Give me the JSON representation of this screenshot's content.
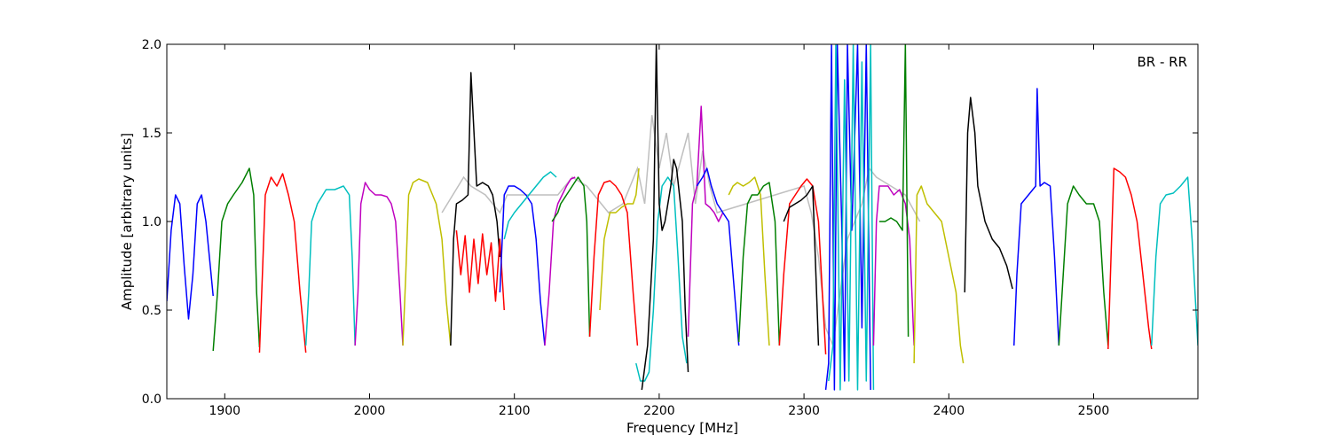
{
  "chart_data": {
    "type": "line",
    "title": "",
    "xlabel": "Frequency [MHz]",
    "ylabel": "Amplitude [arbitrary units]",
    "xlim": [
      1860,
      2572
    ],
    "ylim": [
      0.0,
      2.0
    ],
    "x_ticks": [
      1900,
      2000,
      2100,
      2200,
      2300,
      2400,
      2500
    ],
    "y_ticks": [
      0.0,
      0.5,
      1.0,
      1.5,
      2.0
    ],
    "x_tick_labels": [
      "1900",
      "2000",
      "2100",
      "2200",
      "2300",
      "2400",
      "2500"
    ],
    "y_tick_labels": [
      "0.0",
      "0.5",
      "1.0",
      "1.5",
      "2.0"
    ],
    "annotation": "BR - RR",
    "annotation_position": "top-right",
    "grid": false,
    "background_series": {
      "color": "#bfbfbf",
      "description": "unflagged data (gray) underlying each band",
      "points": [
        [
          2050,
          1.05
        ],
        [
          2065,
          1.25
        ],
        [
          2070,
          1.2
        ],
        [
          2080,
          1.15
        ],
        [
          2090,
          1.05
        ],
        [
          2095,
          1.15
        ],
        [
          2130,
          1.15
        ],
        [
          2140,
          1.25
        ],
        [
          2150,
          1.2
        ],
        [
          2165,
          1.05
        ],
        [
          2175,
          1.1
        ],
        [
          2185,
          1.3
        ],
        [
          2190,
          1.1
        ],
        [
          2195,
          1.6
        ],
        [
          2200,
          1.3
        ],
        [
          2205,
          1.5
        ],
        [
          2210,
          1.2
        ],
        [
          2220,
          1.5
        ],
        [
          2225,
          1.1
        ],
        [
          2230,
          1.4
        ],
        [
          2235,
          1.2
        ],
        [
          2240,
          1.05
        ],
        [
          2300,
          1.2
        ],
        [
          2305,
          1.05
        ],
        [
          2310,
          0.8
        ],
        [
          2315,
          0.4
        ],
        [
          2320,
          0.3
        ],
        [
          2330,
          0.9
        ],
        [
          2340,
          1.1
        ],
        [
          2345,
          1.3
        ],
        [
          2350,
          1.25
        ],
        [
          2360,
          1.2
        ],
        [
          2370,
          1.15
        ],
        [
          2380,
          1.0
        ]
      ]
    },
    "series": [
      {
        "color": "#0000ff",
        "x": [
          1860,
          1863,
          1866,
          1869,
          1872,
          1875,
          1878,
          1881,
          1884,
          1887,
          1890,
          1892
        ],
        "y": [
          0.55,
          0.95,
          1.15,
          1.1,
          0.75,
          0.45,
          0.7,
          1.1,
          1.15,
          1.0,
          0.75,
          0.58
        ]
      },
      {
        "color": "#007f00",
        "x": [
          1892,
          1895,
          1898,
          1902,
          1906,
          1912,
          1917,
          1920,
          1922,
          1924
        ],
        "y": [
          0.27,
          0.6,
          1.0,
          1.1,
          1.15,
          1.22,
          1.3,
          1.15,
          0.6,
          0.29
        ]
      },
      {
        "color": "#ff0000",
        "x": [
          1924,
          1926,
          1928,
          1932,
          1936,
          1940,
          1944,
          1948,
          1952,
          1956
        ],
        "y": [
          0.26,
          0.7,
          1.15,
          1.25,
          1.2,
          1.27,
          1.15,
          1.0,
          0.6,
          0.26
        ]
      },
      {
        "color": "#00bfbf",
        "x": [
          1956,
          1958,
          1960,
          1964,
          1970,
          1976,
          1982,
          1986,
          1988,
          1990
        ],
        "y": [
          0.3,
          0.6,
          1.0,
          1.1,
          1.18,
          1.18,
          1.2,
          1.15,
          0.8,
          0.3
        ]
      },
      {
        "color": "#bf00bf",
        "x": [
          1990,
          1992,
          1994,
          1997,
          2000,
          2004,
          2008,
          2012,
          2015,
          2018,
          2021,
          2023
        ],
        "y": [
          0.3,
          0.6,
          1.1,
          1.22,
          1.18,
          1.15,
          1.15,
          1.14,
          1.1,
          1.0,
          0.6,
          0.3
        ]
      },
      {
        "color": "#bfbf00",
        "x": [
          2023,
          2025,
          2027,
          2030,
          2034,
          2040,
          2046,
          2050,
          2053,
          2056
        ],
        "y": [
          0.3,
          0.7,
          1.15,
          1.22,
          1.24,
          1.22,
          1.1,
          0.9,
          0.55,
          0.3
        ]
      },
      {
        "color": "#000000",
        "x": [
          2056,
          2058,
          2060,
          2064,
          2068,
          2070,
          2074,
          2078,
          2082,
          2085,
          2088,
          2090
        ],
        "y": [
          0.3,
          0.9,
          1.1,
          1.12,
          1.15,
          1.84,
          1.2,
          1.22,
          1.2,
          1.15,
          1.0,
          0.8
        ]
      },
      {
        "color": "#ff0000",
        "x": [
          2060,
          2063,
          2066,
          2069,
          2072,
          2075,
          2078,
          2081,
          2084,
          2087,
          2090,
          2093
        ],
        "y": [
          0.95,
          0.7,
          0.92,
          0.6,
          0.9,
          0.65,
          0.93,
          0.7,
          0.88,
          0.55,
          0.9,
          0.5
        ]
      },
      {
        "color": "#0000ff",
        "x": [
          2090,
          2093,
          2096,
          2100,
          2104,
          2108,
          2112,
          2115,
          2118,
          2121
        ],
        "y": [
          0.6,
          1.15,
          1.2,
          1.2,
          1.18,
          1.15,
          1.1,
          0.9,
          0.55,
          0.3
        ]
      },
      {
        "color": "#00bfbf",
        "x": [
          2093,
          2096,
          2100,
          2105,
          2110,
          2115,
          2120,
          2125,
          2129
        ],
        "y": [
          0.9,
          1.0,
          1.05,
          1.1,
          1.15,
          1.2,
          1.25,
          1.28,
          1.25
        ]
      },
      {
        "color": "#bf00bf",
        "x": [
          2121,
          2124,
          2127,
          2130,
          2133,
          2136,
          2139,
          2142
        ],
        "y": [
          0.3,
          0.6,
          1.0,
          1.1,
          1.15,
          1.2,
          1.24,
          1.25
        ]
      },
      {
        "color": "#007f00",
        "x": [
          2126,
          2130,
          2132,
          2136,
          2140,
          2144,
          2148,
          2150,
          2152
        ],
        "y": [
          1.0,
          1.05,
          1.1,
          1.15,
          1.2,
          1.25,
          1.2,
          1.0,
          0.35
        ]
      },
      {
        "color": "#ff0000",
        "x": [
          2152,
          2155,
          2158,
          2162,
          2166,
          2170,
          2174,
          2178,
          2182,
          2185
        ],
        "y": [
          0.35,
          0.8,
          1.15,
          1.22,
          1.23,
          1.2,
          1.15,
          1.05,
          0.6,
          0.3
        ]
      },
      {
        "color": "#bfbf00",
        "x": [
          2159,
          2162,
          2166,
          2170,
          2174,
          2178,
          2182,
          2184,
          2186
        ],
        "y": [
          0.5,
          0.9,
          1.05,
          1.05,
          1.08,
          1.1,
          1.1,
          1.15,
          1.3
        ]
      },
      {
        "color": "#00bfbf",
        "x": [
          2184,
          2187,
          2190,
          2193,
          2196,
          2199,
          2202,
          2206,
          2210,
          2213,
          2216,
          2219
        ],
        "y": [
          0.2,
          0.1,
          0.1,
          0.15,
          0.5,
          1.0,
          1.2,
          1.25,
          1.2,
          0.8,
          0.35,
          0.2
        ]
      },
      {
        "color": "#000000",
        "x": [
          2188,
          2192,
          2196,
          2198,
          2200,
          2202,
          2204,
          2206,
          2208,
          2210,
          2212,
          2214,
          2216,
          2218,
          2220
        ],
        "y": [
          0.05,
          0.3,
          0.9,
          2.0,
          1.1,
          0.95,
          1.0,
          1.1,
          1.2,
          1.35,
          1.3,
          1.15,
          1.0,
          0.5,
          0.15
        ]
      },
      {
        "color": "#bf00bf",
        "x": [
          2220,
          2223,
          2226,
          2229,
          2232,
          2235,
          2238,
          2241,
          2244
        ],
        "y": [
          0.35,
          1.1,
          1.2,
          1.65,
          1.1,
          1.08,
          1.05,
          1.0,
          1.05
        ]
      },
      {
        "color": "#0000ff",
        "x": [
          2226,
          2230,
          2233,
          2236,
          2240,
          2244,
          2248,
          2252,
          2255
        ],
        "y": [
          1.2,
          1.25,
          1.3,
          1.2,
          1.1,
          1.05,
          1.0,
          0.6,
          0.3
        ]
      },
      {
        "color": "#bfbf00",
        "x": [
          2248,
          2251,
          2254,
          2258,
          2262,
          2266,
          2270,
          2273,
          2276
        ],
        "y": [
          1.15,
          1.2,
          1.22,
          1.2,
          1.22,
          1.25,
          1.15,
          0.7,
          0.3
        ]
      },
      {
        "color": "#007f00",
        "x": [
          2255,
          2258,
          2261,
          2264,
          2268,
          2272,
          2276,
          2280,
          2283
        ],
        "y": [
          0.32,
          0.8,
          1.1,
          1.15,
          1.15,
          1.2,
          1.22,
          1.0,
          0.3
        ]
      },
      {
        "color": "#ff0000",
        "x": [
          2283,
          2286,
          2290,
          2294,
          2298,
          2302,
          2306,
          2310,
          2315
        ],
        "y": [
          0.3,
          0.7,
          1.1,
          1.15,
          1.2,
          1.24,
          1.2,
          1.0,
          0.25
        ]
      },
      {
        "color": "#000000",
        "x": [
          2286,
          2290,
          2294,
          2298,
          2302,
          2306,
          2310
        ],
        "y": [
          1.0,
          1.08,
          1.1,
          1.12,
          1.15,
          1.2,
          0.3
        ]
      },
      {
        "color": "#0000ff",
        "x": [
          2315,
          2317,
          2319,
          2321,
          2323,
          2326,
          2328,
          2330,
          2333,
          2337,
          2340,
          2343,
          2346
        ],
        "y": [
          0.05,
          0.2,
          2.0,
          0.05,
          2.0,
          1.0,
          0.1,
          2.0,
          0.95,
          2.0,
          0.4,
          2.0,
          0.05
        ]
      },
      {
        "color": "#00bfbf",
        "x": [
          2317,
          2320,
          2322,
          2325,
          2328,
          2331,
          2334,
          2337,
          2340,
          2343,
          2346,
          2348
        ],
        "y": [
          0.1,
          0.3,
          2.0,
          0.05,
          1.8,
          0.1,
          2.0,
          0.05,
          1.9,
          0.1,
          2.0,
          0.05
        ]
      },
      {
        "color": "#bf00bf",
        "x": [
          2348,
          2350,
          2352,
          2355,
          2358,
          2362,
          2366,
          2370,
          2373,
          2376
        ],
        "y": [
          0.3,
          1.0,
          1.2,
          1.2,
          1.2,
          1.15,
          1.18,
          1.1,
          0.9,
          0.3
        ]
      },
      {
        "color": "#007f00",
        "x": [
          2352,
          2356,
          2360,
          2364,
          2368,
          2370,
          2372
        ],
        "y": [
          1.0,
          1.0,
          1.02,
          1.0,
          0.95,
          2.0,
          0.35
        ]
      },
      {
        "color": "#bfbf00",
        "x": [
          2376,
          2378,
          2381,
          2385,
          2390,
          2395,
          2400,
          2405,
          2408,
          2410
        ],
        "y": [
          0.2,
          1.15,
          1.2,
          1.1,
          1.05,
          1.0,
          0.8,
          0.6,
          0.3,
          0.2
        ]
      },
      {
        "color": "#000000",
        "x": [
          2411,
          2413,
          2415,
          2418,
          2420,
          2425,
          2430,
          2435,
          2440,
          2444
        ],
        "y": [
          0.6,
          1.5,
          1.7,
          1.5,
          1.2,
          1.0,
          0.9,
          0.85,
          0.75,
          0.62
        ]
      },
      {
        "color": "#0000ff",
        "x": [
          2445,
          2447,
          2450,
          2455,
          2460,
          2461,
          2463,
          2466,
          2470,
          2473,
          2476
        ],
        "y": [
          0.3,
          0.7,
          1.1,
          1.15,
          1.2,
          1.75,
          1.2,
          1.22,
          1.2,
          0.8,
          0.3
        ]
      },
      {
        "color": "#007f00",
        "x": [
          2476,
          2479,
          2482,
          2486,
          2490,
          2495,
          2500,
          2504,
          2507,
          2510
        ],
        "y": [
          0.3,
          0.7,
          1.1,
          1.2,
          1.15,
          1.1,
          1.1,
          1.0,
          0.6,
          0.3
        ]
      },
      {
        "color": "#ff0000",
        "x": [
          2510,
          2512,
          2514,
          2518,
          2522,
          2526,
          2530,
          2534,
          2538,
          2540
        ],
        "y": [
          0.28,
          0.8,
          1.3,
          1.28,
          1.25,
          1.15,
          1.0,
          0.7,
          0.4,
          0.28
        ]
      },
      {
        "color": "#00bfbf",
        "x": [
          2540,
          2543,
          2546,
          2550,
          2555,
          2560,
          2565,
          2568,
          2572
        ],
        "y": [
          0.3,
          0.8,
          1.1,
          1.15,
          1.16,
          1.2,
          1.25,
          0.9,
          0.3
        ]
      }
    ]
  }
}
